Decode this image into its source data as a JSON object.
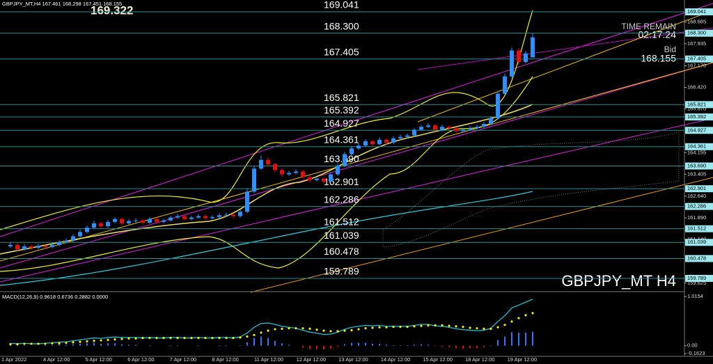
{
  "chart_data": {
    "type": "candlestick",
    "header": "GBPJPY_MT,H4  167.461 168.298 167.451 168.155",
    "big_price": "169.322",
    "time_remain_label": "TIME REMAIN",
    "time_remain": "02:17:24",
    "bid_label": "Bid",
    "bid": 168.155,
    "watermark": "GBPJPY_MT H4",
    "colors": {
      "up": "#2f8fff",
      "down": "#e01010",
      "level": "#2a8f8f",
      "box": "#9ee8f0"
    },
    "ylim": [
      159.354,
      169.452
    ],
    "yticks": [
      {
        "value": 168.685,
        "label": "168.685"
      },
      {
        "value": 167.935,
        "label": "167.935"
      },
      {
        "value": 167.17,
        "label": "167.170"
      },
      {
        "value": 166.42,
        "label": "166.420"
      },
      {
        "value": 165.67,
        "label": "165.670"
      },
      {
        "value": 164.155,
        "label": "164.155"
      },
      {
        "value": 163.405,
        "label": "163.405"
      },
      {
        "value": 162.64,
        "label": "162.640"
      },
      {
        "value": 161.89,
        "label": "161.890"
      },
      {
        "value": 161.14,
        "label": "161.140"
      },
      {
        "value": 159.625,
        "label": "159.625"
      }
    ],
    "levels": [
      169.041,
      168.3,
      167.405,
      165.821,
      165.392,
      164.927,
      164.361,
      163.69,
      162.901,
      162.286,
      161.512,
      161.039,
      160.478,
      159.789
    ],
    "level_labels": [
      "169.041",
      "168.300",
      "167.405",
      "165.821",
      "165.392",
      "164.927",
      "164.361",
      "163.690",
      "162.901",
      "162.286",
      "161.512",
      "161.039",
      "160.478",
      "159.789"
    ],
    "x_labels": [
      "1 Apr 2022",
      "4 Apr 12:00",
      "5 Apr 12:00",
      "6 Apr 12:00",
      "7 Apr 12:00",
      "8 Apr 12:00",
      "11 Apr 12:00",
      "12 Apr 12:00",
      "13 Apr 12:00",
      "14 Apr 12:00",
      "15 Apr 12:00",
      "18 Apr 12:00",
      "19 Apr 12:00"
    ],
    "candles": [
      [
        160.9,
        161.05,
        160.85,
        160.95
      ],
      [
        160.95,
        161.02,
        160.72,
        160.8
      ],
      [
        160.8,
        160.98,
        160.74,
        160.9
      ],
      [
        160.9,
        160.96,
        160.78,
        160.85
      ],
      [
        160.85,
        161.0,
        160.8,
        160.92
      ],
      [
        160.92,
        160.98,
        160.82,
        160.88
      ],
      [
        160.88,
        161.02,
        160.84,
        160.95
      ],
      [
        160.95,
        161.12,
        160.9,
        161.05
      ],
      [
        161.05,
        161.18,
        161.0,
        161.1
      ],
      [
        161.1,
        161.32,
        161.06,
        161.25
      ],
      [
        161.25,
        161.48,
        161.2,
        161.4
      ],
      [
        161.4,
        161.62,
        161.35,
        161.55
      ],
      [
        161.55,
        161.8,
        161.5,
        161.7
      ],
      [
        161.7,
        161.76,
        161.52,
        161.6
      ],
      [
        161.6,
        161.82,
        161.55,
        161.75
      ],
      [
        161.75,
        161.92,
        161.7,
        161.85
      ],
      [
        161.85,
        161.9,
        161.64,
        161.7
      ],
      [
        161.7,
        161.84,
        161.65,
        161.78
      ],
      [
        161.78,
        161.88,
        161.72,
        161.8
      ],
      [
        161.8,
        161.85,
        161.66,
        161.72
      ],
      [
        161.72,
        161.92,
        161.68,
        161.85
      ],
      [
        161.85,
        161.9,
        161.7,
        161.75
      ],
      [
        161.75,
        161.86,
        161.7,
        161.8
      ],
      [
        161.8,
        161.96,
        161.76,
        161.9
      ],
      [
        161.9,
        162.02,
        161.85,
        161.95
      ],
      [
        161.95,
        162.0,
        161.8,
        161.85
      ],
      [
        161.85,
        161.96,
        161.8,
        161.9
      ],
      [
        161.9,
        162.02,
        161.86,
        161.95
      ],
      [
        161.95,
        162.0,
        161.82,
        161.88
      ],
      [
        161.88,
        161.98,
        161.84,
        161.92
      ],
      [
        161.92,
        162.05,
        161.88,
        161.98
      ],
      [
        161.98,
        162.08,
        161.94,
        162.0
      ],
      [
        162.0,
        162.05,
        161.88,
        161.95
      ],
      [
        161.95,
        162.18,
        161.9,
        162.1
      ],
      [
        162.1,
        162.9,
        162.05,
        162.8
      ],
      [
        162.8,
        163.7,
        162.75,
        163.6
      ],
      [
        163.6,
        164.05,
        163.55,
        163.9
      ],
      [
        163.9,
        163.98,
        163.68,
        163.75
      ],
      [
        163.75,
        163.8,
        163.48,
        163.55
      ],
      [
        163.55,
        163.62,
        163.32,
        163.4
      ],
      [
        163.4,
        163.52,
        163.35,
        163.45
      ],
      [
        163.45,
        163.58,
        163.4,
        163.5
      ],
      [
        163.5,
        163.55,
        163.25,
        163.3
      ],
      [
        163.3,
        163.36,
        163.12,
        163.2
      ],
      [
        163.2,
        163.32,
        163.15,
        163.25
      ],
      [
        163.25,
        163.3,
        163.08,
        163.15
      ],
      [
        163.15,
        163.48,
        163.1,
        163.4
      ],
      [
        163.4,
        163.78,
        163.35,
        163.7
      ],
      [
        163.7,
        164.18,
        163.65,
        164.1
      ],
      [
        164.1,
        164.38,
        164.05,
        164.3
      ],
      [
        164.3,
        164.48,
        164.25,
        164.4
      ],
      [
        164.4,
        164.62,
        164.35,
        164.55
      ],
      [
        164.55,
        164.6,
        164.38,
        164.45
      ],
      [
        164.45,
        164.68,
        164.4,
        164.6
      ],
      [
        164.6,
        164.65,
        164.42,
        164.5
      ],
      [
        164.5,
        164.72,
        164.45,
        164.65
      ],
      [
        164.65,
        164.78,
        164.6,
        164.7
      ],
      [
        164.7,
        164.82,
        164.65,
        164.75
      ],
      [
        164.75,
        165.02,
        164.7,
        164.95
      ],
      [
        164.95,
        165.12,
        164.9,
        165.05
      ],
      [
        165.05,
        165.18,
        165.0,
        165.1
      ],
      [
        165.1,
        165.15,
        164.88,
        164.95
      ],
      [
        164.95,
        165.12,
        164.9,
        165.05
      ],
      [
        165.05,
        165.1,
        164.94,
        165.0
      ],
      [
        165.0,
        165.05,
        164.84,
        164.9
      ],
      [
        164.9,
        165.02,
        164.86,
        164.95
      ],
      [
        164.95,
        165.08,
        164.9,
        165.0
      ],
      [
        165.0,
        165.12,
        164.95,
        165.05
      ],
      [
        165.05,
        165.22,
        165.0,
        165.15
      ],
      [
        165.15,
        165.42,
        165.1,
        165.35
      ],
      [
        165.35,
        166.3,
        165.3,
        166.2
      ],
      [
        166.2,
        166.9,
        166.15,
        166.8
      ],
      [
        166.8,
        167.8,
        166.75,
        167.7
      ],
      [
        167.7,
        167.78,
        167.22,
        167.3
      ],
      [
        167.3,
        167.68,
        167.25,
        167.6
      ],
      [
        167.461,
        168.298,
        167.451,
        168.155
      ]
    ],
    "macd": {
      "title": "MACD(12,26,9) 0.9618 0.6736 0.2882 0.0000",
      "ylim": [
        -0.22,
        1.103
      ],
      "yticks": [
        1.0154,
        {
          "value": 0,
          "label": "0.00"
        },
        -0.1623
      ],
      "main_color": "#19c3d8",
      "signal_color": "#f0f000",
      "hist_up": "#3a70ff",
      "hist_down": "#e01010",
      "main": [
        0.05,
        0.04,
        0.05,
        0.04,
        0.04,
        0.05,
        0.06,
        0.07,
        0.08,
        0.1,
        0.12,
        0.14,
        0.16,
        0.15,
        0.17,
        0.18,
        0.17,
        0.17,
        0.17,
        0.16,
        0.17,
        0.16,
        0.16,
        0.17,
        0.17,
        0.16,
        0.16,
        0.17,
        0.16,
        0.16,
        0.17,
        0.17,
        0.16,
        0.18,
        0.26,
        0.38,
        0.46,
        0.47,
        0.44,
        0.4,
        0.38,
        0.36,
        0.32,
        0.28,
        0.26,
        0.23,
        0.24,
        0.28,
        0.34,
        0.38,
        0.4,
        0.42,
        0.41,
        0.42,
        0.4,
        0.4,
        0.4,
        0.4,
        0.42,
        0.44,
        0.44,
        0.41,
        0.4,
        0.38,
        0.35,
        0.33,
        0.32,
        0.31,
        0.32,
        0.36,
        0.5,
        0.62,
        0.78,
        0.84,
        0.9,
        0.9618
      ],
      "signal": [
        0.03,
        0.03,
        0.04,
        0.04,
        0.04,
        0.04,
        0.05,
        0.05,
        0.06,
        0.07,
        0.08,
        0.09,
        0.1,
        0.11,
        0.12,
        0.13,
        0.14,
        0.15,
        0.15,
        0.16,
        0.16,
        0.16,
        0.16,
        0.16,
        0.16,
        0.16,
        0.16,
        0.16,
        0.16,
        0.16,
        0.16,
        0.16,
        0.16,
        0.17,
        0.19,
        0.22,
        0.27,
        0.31,
        0.34,
        0.35,
        0.36,
        0.36,
        0.36,
        0.35,
        0.33,
        0.31,
        0.3,
        0.3,
        0.31,
        0.32,
        0.34,
        0.36,
        0.37,
        0.38,
        0.38,
        0.39,
        0.39,
        0.39,
        0.4,
        0.41,
        0.42,
        0.42,
        0.42,
        0.41,
        0.4,
        0.39,
        0.37,
        0.36,
        0.35,
        0.35,
        0.38,
        0.43,
        0.5,
        0.57,
        0.63,
        0.6736
      ],
      "histogram": [
        0.02,
        0.01,
        0.01,
        0.0,
        0.0,
        0.01,
        0.01,
        0.02,
        0.02,
        0.03,
        0.04,
        0.05,
        0.06,
        0.04,
        0.05,
        0.05,
        0.03,
        0.02,
        0.02,
        0.0,
        0.01,
        0.0,
        0.0,
        0.01,
        0.01,
        0.0,
        0.0,
        0.01,
        0.0,
        0.0,
        0.01,
        0.01,
        0.0,
        0.01,
        0.07,
        0.16,
        0.19,
        0.16,
        0.1,
        0.05,
        0.02,
        0.0,
        -0.04,
        -0.07,
        -0.07,
        -0.08,
        -0.06,
        -0.02,
        0.03,
        0.06,
        0.06,
        0.06,
        0.04,
        0.04,
        0.02,
        0.01,
        0.01,
        0.01,
        0.02,
        0.03,
        0.02,
        -0.01,
        -0.02,
        -0.03,
        -0.05,
        -0.06,
        -0.05,
        -0.05,
        -0.03,
        0.01,
        0.12,
        0.19,
        0.28,
        0.27,
        0.27,
        0.2882
      ]
    }
  }
}
